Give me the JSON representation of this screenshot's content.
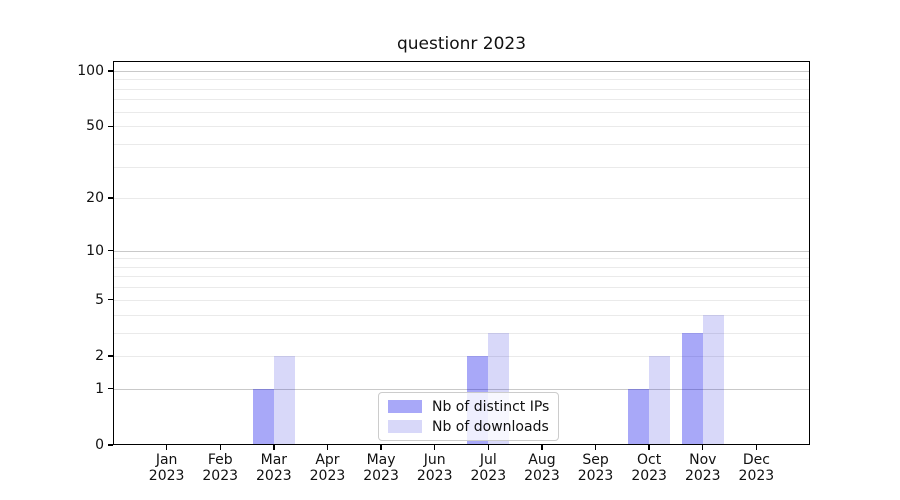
{
  "figure": {
    "background": "#ffffff",
    "text_color": "#111111",
    "spine_color": "#000000"
  },
  "chart_data": {
    "type": "bar",
    "title": "questionr 2023",
    "categories": [
      "Jan",
      "Feb",
      "Mar",
      "Apr",
      "May",
      "Jun",
      "Jul",
      "Aug",
      "Sep",
      "Oct",
      "Nov",
      "Dec"
    ],
    "category_year": "2023",
    "series": [
      {
        "name": "Nb of distinct IPs",
        "color": "#0000EB57",
        "values": [
          0,
          0,
          1,
          0,
          0,
          0,
          2,
          0,
          0,
          1,
          3,
          0
        ]
      },
      {
        "name": "Nb of downloads",
        "color": "#0000D727",
        "values": [
          0,
          0,
          2,
          0,
          0,
          0,
          3,
          0,
          0,
          2,
          4,
          0
        ]
      }
    ],
    "xlabel": "",
    "ylabel": "",
    "y_axis": {
      "scale": "log1p",
      "ylim": [
        0,
        113
      ],
      "tick_values": [
        0,
        1,
        2,
        5,
        10,
        20,
        50,
        100
      ],
      "major_gridlines": [
        1,
        10,
        100
      ],
      "minor_gridlines": [
        2,
        3,
        4,
        5,
        6,
        7,
        8,
        9,
        20,
        30,
        40,
        50,
        60,
        70,
        80,
        90
      ],
      "major_grid_color": "#c9c9c9",
      "minor_grid_color": "#eaeaea"
    },
    "grid": true,
    "legend": {
      "position": "lower center"
    }
  }
}
